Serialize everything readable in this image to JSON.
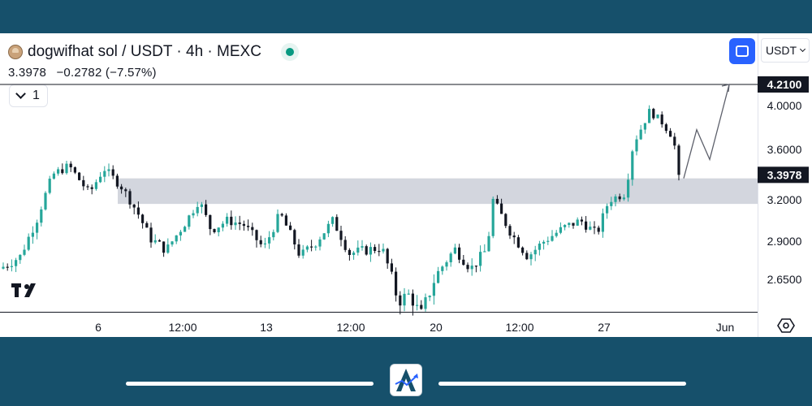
{
  "header": {
    "title": "dogwifhat sol / USDT · 4h · MEXC",
    "price": "3.3978",
    "change": "−0.2782 (−7.57%)",
    "collapse_label": "1",
    "currency": "USDT"
  },
  "colors": {
    "up": "#26a69a",
    "down": "#131722",
    "accent": "#2962ff",
    "status": "#089981",
    "frame": "#16506b"
  },
  "icons": [
    "coin-icon",
    "status-dot-icon",
    "chevron-down-icon",
    "fullscreen-icon",
    "settings-icon",
    "tradingview-logo-icon",
    "app-logo-icon"
  ],
  "chart_data": {
    "type": "candlestick",
    "y_ticks": [
      "4.0000",
      "3.6000",
      "3.2000",
      "2.9000",
      "2.6500"
    ],
    "x_ticks": [
      "6",
      "12:00",
      "13",
      "12:00",
      "20",
      "12:00",
      "27",
      "Jun"
    ],
    "price_labels": {
      "resistance": "4.2100",
      "last": "3.3978"
    },
    "resistance_level": 4.21,
    "last_price": 3.3978,
    "support_zone": [
      3.17,
      3.37
    ],
    "projected_path": [
      3.37,
      3.78,
      3.52,
      4.21
    ],
    "grid": false
  }
}
